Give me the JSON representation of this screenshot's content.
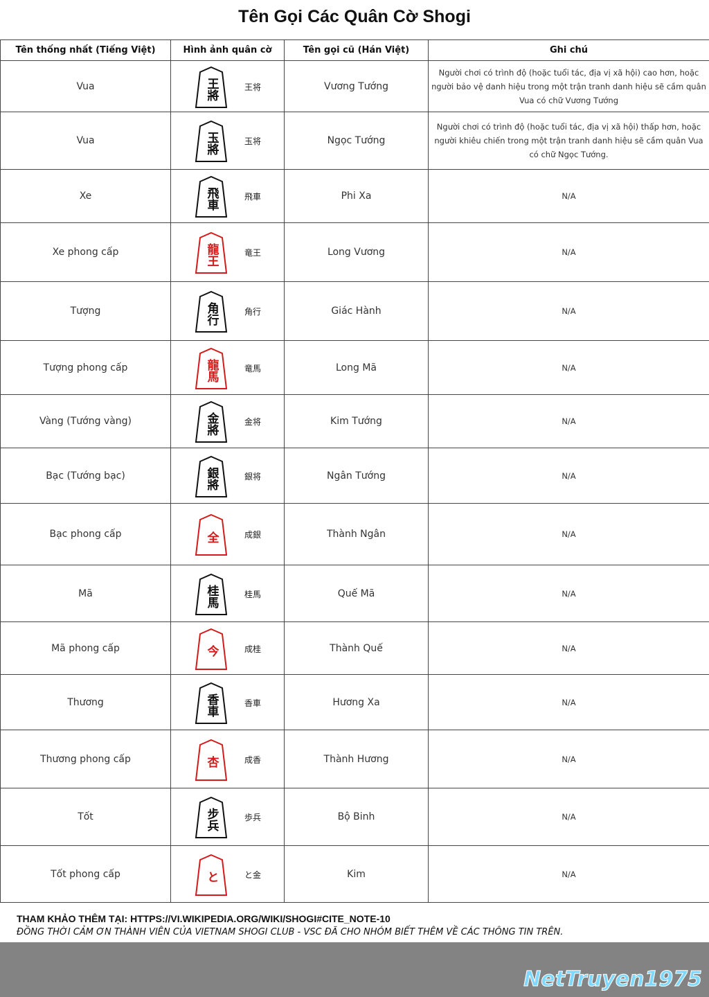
{
  "header": {
    "title": "Tên Gọi Các Quân Cờ Shogi"
  },
  "table": {
    "columns": [
      "Tên thống nhất (Tiếng Việt)",
      "Hình ảnh quân cờ",
      "Tên gọi cũ (Hán Việt)",
      "Ghi chú"
    ],
    "rows": [
      {
        "name": "Vua",
        "glyph": "王將",
        "glyph_color": "#111111",
        "label": "王将",
        "old_name": "Vương Tướng",
        "note": "Người chơi có trình độ (hoặc tuổi tác, địa vị xã hội) cao hơn, hoặc người bảo vệ danh hiệu trong một trận tranh danh hiệu sẽ cầm quân Vua có chữ Vương Tướng"
      },
      {
        "name": "Vua",
        "glyph": "玉將",
        "glyph_color": "#111111",
        "label": "玉将",
        "old_name": "Ngọc Tướng",
        "note": "Người chơi có trình độ (hoặc tuổi tác, địa vị xã hội) thấp hơn, hoặc người khiêu chiến trong một trận tranh danh hiệu sẽ cầm quân Vua có chữ Ngọc Tướng."
      },
      {
        "name": "Xe",
        "glyph": "飛車",
        "glyph_color": "#111111",
        "label": "飛車",
        "old_name": "Phi Xa",
        "note": "N/A"
      },
      {
        "name": "Xe phong cấp",
        "glyph": "龍王",
        "glyph_color": "#d41a1a",
        "label": "竜王",
        "old_name": "Long Vương",
        "note": "N/A"
      },
      {
        "name": "Tượng",
        "glyph": "角行",
        "glyph_color": "#111111",
        "label": "角行",
        "old_name": "Giác Hành",
        "note": "N/A"
      },
      {
        "name": "Tượng phong cấp",
        "glyph": "龍馬",
        "glyph_color": "#d41a1a",
        "label": "竜馬",
        "old_name": "Long Mã",
        "note": "N/A"
      },
      {
        "name": "Vàng (Tướng vàng)",
        "glyph": "金將",
        "glyph_color": "#111111",
        "label": "金将",
        "old_name": "Kim Tướng",
        "note": "N/A"
      },
      {
        "name": "Bạc (Tướng bạc)",
        "glyph": "銀將",
        "glyph_color": "#111111",
        "label": "銀将",
        "old_name": "Ngân Tướng",
        "note": "N/A"
      },
      {
        "name": "Bạc phong cấp",
        "glyph": "全",
        "glyph_color": "#d41a1a",
        "label": "成銀",
        "old_name": "Thành Ngân",
        "note": "N/A"
      },
      {
        "name": "Mã",
        "glyph": "桂馬",
        "glyph_color": "#111111",
        "label": "桂馬",
        "old_name": "Quế Mã",
        "note": "N/A"
      },
      {
        "name": "Mã phong cấp",
        "glyph": "今",
        "glyph_color": "#d41a1a",
        "label": "成桂",
        "old_name": "Thành Quế",
        "note": "N/A"
      },
      {
        "name": "Thương",
        "glyph": "香車",
        "glyph_color": "#111111",
        "label": "香車",
        "old_name": "Hương Xa",
        "note": "N/A"
      },
      {
        "name": "Thương phong cấp",
        "glyph": "杏",
        "glyph_color": "#d41a1a",
        "label": "成香",
        "old_name": "Thành Hương",
        "note": "N/A"
      },
      {
        "name": "Tốt",
        "glyph": "步兵",
        "glyph_color": "#111111",
        "label": "歩兵",
        "old_name": "Bộ Binh",
        "note": "N/A"
      },
      {
        "name": "Tốt phong cấp",
        "glyph": "と",
        "glyph_color": "#d41a1a",
        "label": "と金",
        "old_name": "Kim",
        "note": "N/A"
      }
    ]
  },
  "footer": {
    "reference_label": "THAM KHẢO THÊM TẠI:",
    "reference_url": "HTTPS://VI.WIKIPEDIA.ORG/WIKI/SHOGI#CITE_NOTE-10",
    "thanks": "ĐỒNG THỜI CẢM ƠN THÀNH VIÊN CỦA VIETNAM SHOGI CLUB - VSC ĐÃ CHO NHÓM BIẾT THÊM VỀ CÁC THÔNG TIN TRÊN."
  },
  "watermark": {
    "logo": "NetTruyen1975"
  }
}
